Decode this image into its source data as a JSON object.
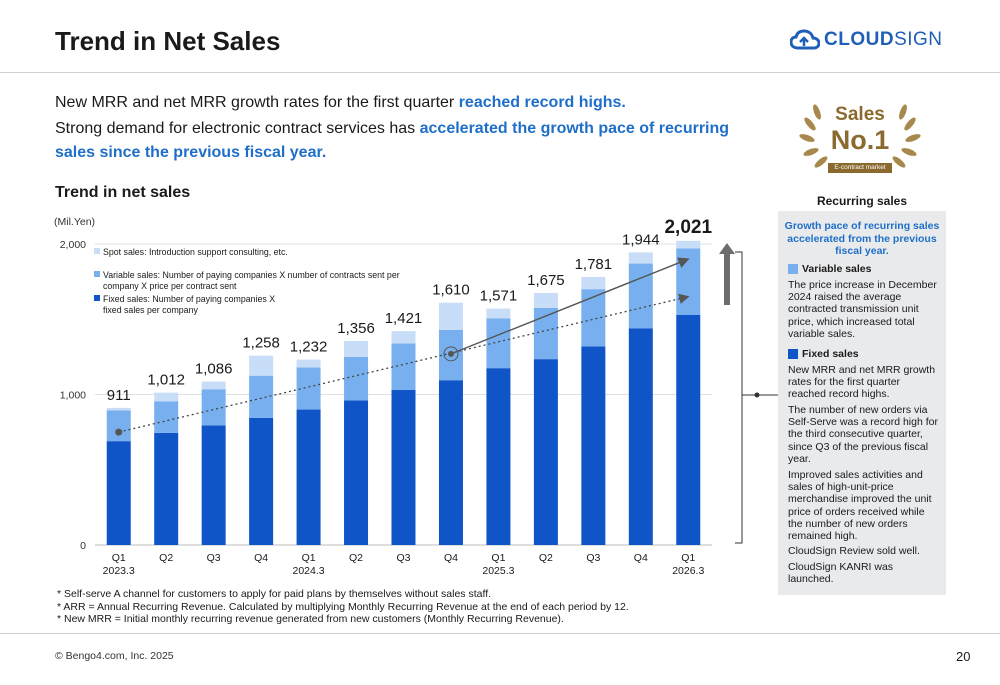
{
  "header": {
    "title": "Trend in Net Sales",
    "logo_text_bold": "CLOUD",
    "logo_text_thin": "SIGN"
  },
  "lead": {
    "line1_plain": "New MRR and net MRR growth rates for the first quarter ",
    "line1_highlight": "reached record highs.",
    "line2_plain": "Strong demand for electronic contract services has ",
    "line2_highlight": "accelerated the growth pace of recurring sales since the previous fiscal year."
  },
  "badge": {
    "line1": "Sales",
    "line2": "No.1",
    "ribbon": "E-contract market"
  },
  "chart_title": "Trend in net sales",
  "chart_data": {
    "type": "bar",
    "stacked": true,
    "ylabel": "(Mil.Yen)",
    "ylim": [
      0,
      2000
    ],
    "yticks": [
      0,
      1000,
      2000
    ],
    "yticks_labels": [
      "0",
      "1,000",
      "2,000"
    ],
    "grid": true,
    "legend_position": "top-left",
    "categories": [
      "Q1",
      "Q2",
      "Q3",
      "Q4",
      "Q1",
      "Q2",
      "Q3",
      "Q4",
      "Q1",
      "Q2",
      "Q3",
      "Q4",
      "Q1"
    ],
    "year_labels": [
      "2023.3",
      "",
      "",
      "",
      "2024.3",
      "",
      "",
      "",
      "2025.3",
      "",
      "",
      "",
      "2026.3"
    ],
    "totals": [
      911,
      1012,
      1086,
      1258,
      1232,
      1356,
      1421,
      1610,
      1571,
      1675,
      1781,
      1944,
      2021
    ],
    "total_labels": [
      "911",
      "1,012",
      "1,086",
      "1,258",
      "1,232",
      "1,356",
      "1,421",
      "1,610",
      "1,571",
      "1,675",
      "1,781",
      "1,944",
      "2,021"
    ],
    "series": [
      {
        "name": "Fixed sales: Number of paying companies X fixed sales per company",
        "legend_lines": [
          "Fixed sales: Number of paying companies X",
          "fixed sales per company"
        ],
        "color": "#0f55c8",
        "values": [
          690,
          745,
          795,
          845,
          900,
          960,
          1030,
          1095,
          1175,
          1235,
          1320,
          1440,
          1530
        ]
      },
      {
        "name": "Variable sales: Number of paying companies X number of contracts sent per company X price per contract sent",
        "legend_lines": [
          "Variable sales: Number of paying companies X number of contracts sent per",
          "company X price per contract sent"
        ],
        "color": "#78b0ef",
        "values": [
          205,
          210,
          240,
          280,
          280,
          290,
          310,
          335,
          330,
          340,
          380,
          430,
          440
        ]
      },
      {
        "name": "Spot sales: Introduction support consulting, etc.",
        "legend_lines": [
          "Spot sales: Introduction support consulting, etc."
        ],
        "color": "#c8ddf7",
        "values": [
          16,
          57,
          51,
          133,
          52,
          106,
          81,
          180,
          66,
          100,
          81,
          74,
          51
        ]
      }
    ],
    "trend_line_dotted": {
      "from_category_index": 0,
      "to_category_index": 12,
      "y_from": 750,
      "y_to": 1650
    },
    "trend_arrow_solid": {
      "from_category_index": 7,
      "to_category_index": 12,
      "y_from": 1270,
      "y_to": 1900
    }
  },
  "sidebar": {
    "heading": "Recurring sales",
    "growth_note": "Growth pace of recurring sales accelerated from the previous fiscal year.",
    "variable_heading": "Variable sales",
    "variable_color": "#78b0ef",
    "variable_text": "The price increase in December 2024 raised the average contracted transmission unit price, which increased total variable sales.",
    "fixed_heading": "Fixed sales",
    "fixed_color": "#0f55c8",
    "fixed_points": [
      "New MRR and net MRR growth rates for the first quarter reached record highs.",
      "The number of new orders via Self-Serve was a record high for the third consecutive quarter, since Q3 of the previous fiscal year.",
      "Improved sales activities and sales of high-unit-price merchandise improved the unit price of orders received while the number of new orders remained high.",
      "CloudSign Review sold well.",
      "CloudSign KANRI was launched."
    ]
  },
  "footnotes": [
    "* Self-serve  A channel for customers to apply for paid plans by themselves without sales staff.",
    "* ARR = Annual Recurring Revenue. Calculated by multiplying Monthly Recurring Revenue at the end of each period by 12.",
    "* New MRR = Initial monthly recurring revenue generated from new customers (Monthly Recurring Revenue)."
  ],
  "footer": {
    "copyright": "© Bengo4.com, Inc. 2025",
    "page_number": "20"
  }
}
